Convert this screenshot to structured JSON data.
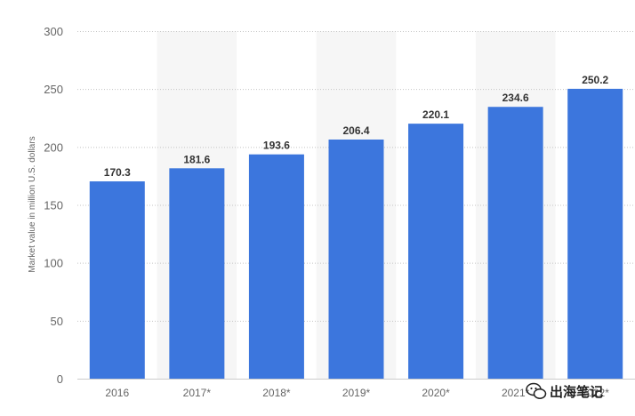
{
  "chart_data": {
    "type": "bar",
    "categories": [
      "2016",
      "2017*",
      "2018*",
      "2019*",
      "2020*",
      "2021*",
      "2022*"
    ],
    "values": [
      170.3,
      181.6,
      193.6,
      206.4,
      220.1,
      234.6,
      250.2
    ],
    "data_labels": [
      "170.3",
      "181.6",
      "193.6",
      "206.4",
      "220.1",
      "234.6",
      "250.2"
    ],
    "ylabel": "Market value in million U.S. dollars",
    "xlabel": "",
    "ylim": [
      0,
      300
    ],
    "yticks": [
      0,
      50,
      100,
      150,
      200,
      250,
      300
    ],
    "grid": "horizontal dotted",
    "bar_color": "#3c76dd",
    "shaded_bands_color": "#f6f6f6"
  },
  "watermark": {
    "text": "出海笔记",
    "icon": "wechat-icon"
  }
}
